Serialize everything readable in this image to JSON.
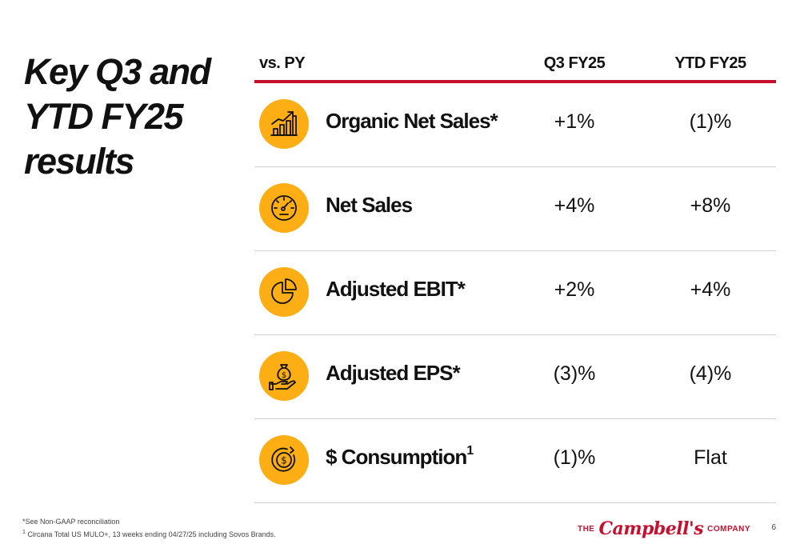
{
  "title": {
    "line1": "Key Q3 and",
    "line2": "YTD FY25",
    "line3": "results"
  },
  "table": {
    "headers": {
      "comparison": "vs. PY",
      "q3": "Q3 FY25",
      "ytd": "YTD FY25"
    },
    "rows": [
      {
        "label": "Organic Net Sales*",
        "note": "",
        "q3": "+1%",
        "ytd": "(1)%",
        "icon": "growth-chart-icon"
      },
      {
        "label": "Net Sales",
        "note": "",
        "q3": "+4%",
        "ytd": "+8%",
        "icon": "speedometer-icon"
      },
      {
        "label": "Adjusted EBIT*",
        "note": "",
        "q3": "+2%",
        "ytd": "+4%",
        "icon": "pie-chart-icon"
      },
      {
        "label": "Adjusted EPS*",
        "note": "",
        "q3": "(3)%",
        "ytd": "(4)%",
        "icon": "money-bag-hand-icon"
      },
      {
        "label": "$ Consumption",
        "note": "1",
        "q3": "(1)%",
        "ytd": "Flat",
        "icon": "dollar-cycle-icon"
      }
    ]
  },
  "footnotes": {
    "line1": "*See Non-GAAP reconciliation",
    "line2_marker": "1",
    "line2": " Circana Total US MULO+, 13 weeks ending 04/27/25 including Sovos Brands."
  },
  "brand": {
    "prefix": "THE",
    "name": "Campbell's",
    "suffix": "COMPANY"
  },
  "page_number": "6",
  "colors": {
    "accent_red": "#c8102e",
    "icon_gold": "#fcae14",
    "divider_gray": "#cfcfcf"
  }
}
